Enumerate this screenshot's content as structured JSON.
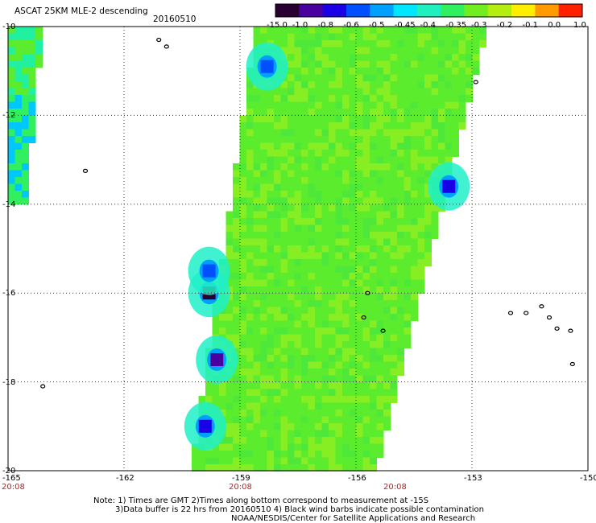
{
  "header": {
    "title": "ASCAT 25KM MLE-2 descending",
    "date": "20160510"
  },
  "colorbar": {
    "labels": [
      "-15.0",
      "-1.0",
      "-0.8",
      "-0.6",
      "-0.5",
      "-0.45",
      "-0.4",
      "-0.35",
      "-0.3",
      "-0.2",
      "-0.1",
      "0.0",
      "1.0"
    ],
    "colors": [
      "#2a0033",
      "#4b00a0",
      "#1a00e6",
      "#0050ff",
      "#00a0ff",
      "#00e6ff",
      "#20f0c0",
      "#30f060",
      "#70ee20",
      "#b4ee10",
      "#ffee00",
      "#ff9a00",
      "#ff2000"
    ]
  },
  "axes": {
    "lon_labels": [
      "-165",
      "-162",
      "-159",
      "-156",
      "-153",
      "-150"
    ],
    "lat_labels": [
      "-10",
      "-12",
      "-14",
      "-16",
      "-18",
      "-20"
    ],
    "lon_values": [
      -165,
      -162,
      -159,
      -156,
      -153,
      -150
    ],
    "lat_values": [
      -10,
      -12,
      -14,
      -16,
      -18,
      -20
    ]
  },
  "times": [
    {
      "label": "20:08",
      "lon": -165
    },
    {
      "label": "20:08",
      "lon": -159
    },
    {
      "label": "20:08",
      "lon": -155
    }
  ],
  "notes": {
    "line1": "Note: 1) Times are GMT 2)Times along bottom correspond to measurement at -15S",
    "line2": "3)Data buffer is 22 hrs from 20160510 4) Black wind barbs indicate possible contamination",
    "line3": "NOAA/NESDIS/Center for Satellite Applications and Research"
  },
  "swath": {
    "lat_top": -10,
    "lat_bottom": -20,
    "west_top": -158.5,
    "west_bottom": -160.2,
    "east_top": -152.7,
    "east_bottom": -155.6,
    "base_color": "#5cec2e",
    "variation_color": "#86ee22"
  },
  "swath_left": {
    "lon_west": -165,
    "lon_east": -164.2,
    "lat_top": -10,
    "lat_bottom": -14
  },
  "low_value_patches": [
    {
      "lon": -158.3,
      "lat": -10.9,
      "color": "#0050ff"
    },
    {
      "lon": -153.6,
      "lat": -13.6,
      "color": "#1a00e6"
    },
    {
      "lon": -159.8,
      "lat": -16.0,
      "color": "#2a0033"
    },
    {
      "lon": -159.6,
      "lat": -17.5,
      "color": "#4b00a0"
    },
    {
      "lon": -159.9,
      "lat": -19.0,
      "color": "#1a00e6"
    },
    {
      "lon": -159.8,
      "lat": -15.5,
      "color": "#0050ff"
    }
  ],
  "islands": [
    {
      "lon": -161.1,
      "lat": -10.3
    },
    {
      "lon": -160.9,
      "lat": -10.45
    },
    {
      "lon": -163.0,
      "lat": -13.25
    },
    {
      "lon": -164.1,
      "lat": -18.1
    },
    {
      "lon": -152.9,
      "lat": -11.25
    },
    {
      "lon": -155.7,
      "lat": -16.0
    },
    {
      "lon": -155.8,
      "lat": -16.55
    },
    {
      "lon": -155.3,
      "lat": -16.85
    },
    {
      "lon": -151.6,
      "lat": -16.45
    },
    {
      "lon": -151.2,
      "lat": -16.3
    },
    {
      "lon": -151.0,
      "lat": -16.55
    },
    {
      "lon": -150.8,
      "lat": -16.8
    },
    {
      "lon": -150.45,
      "lat": -16.85
    },
    {
      "lon": -150.4,
      "lat": -17.6
    },
    {
      "lon": -152.0,
      "lat": -16.45
    }
  ]
}
